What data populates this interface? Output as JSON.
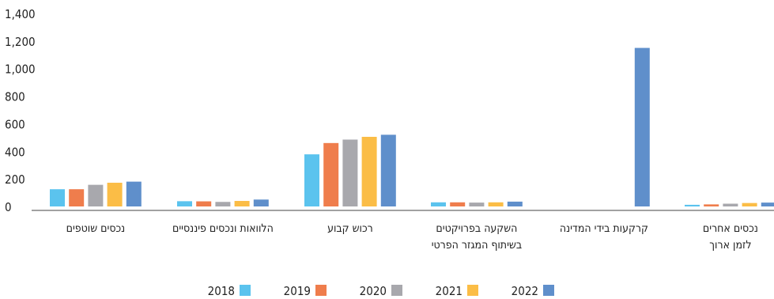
{
  "chart_data": {
    "type": "bar",
    "title": "",
    "xlabel": "",
    "ylabel": "",
    "ylim": [
      0,
      1400
    ],
    "yticks": [
      "1,400",
      "1,200",
      "1,000",
      "800",
      "600",
      "400",
      "200",
      "0"
    ],
    "ytick_values": [
      1400,
      1200,
      1000,
      800,
      600,
      400,
      200,
      0
    ],
    "grid": false,
    "legend_position": "bottom",
    "categories": [
      [
        "נכסים שוטפים"
      ],
      [
        "הלוואות ונכסים פיננסיים"
      ],
      [
        "רכוש קבוע"
      ],
      [
        "השקעה בפרויקטים",
        "בשיתוף המגזר הפרטי"
      ],
      [
        "קרקעות בידי המדינה"
      ],
      [
        "נכסים אחרים",
        "לזמן ארוך"
      ]
    ],
    "series": [
      {
        "name": "2018",
        "color": "#5bc3ee",
        "values": [
          125,
          38,
          378,
          30,
          0,
          12
        ]
      },
      {
        "name": "2019",
        "color": "#ef7d4c",
        "values": [
          125,
          37,
          460,
          30,
          0,
          15
        ]
      },
      {
        "name": "2020",
        "color": "#a8a8ad",
        "values": [
          157,
          33,
          485,
          28,
          0,
          20
        ]
      },
      {
        "name": "2021",
        "color": "#fbbd46",
        "values": [
          172,
          40,
          505,
          30,
          0,
          25
        ]
      },
      {
        "name": "2022",
        "color": "#5f8fcb",
        "values": [
          180,
          50,
          520,
          35,
          1150,
          28
        ]
      }
    ]
  }
}
